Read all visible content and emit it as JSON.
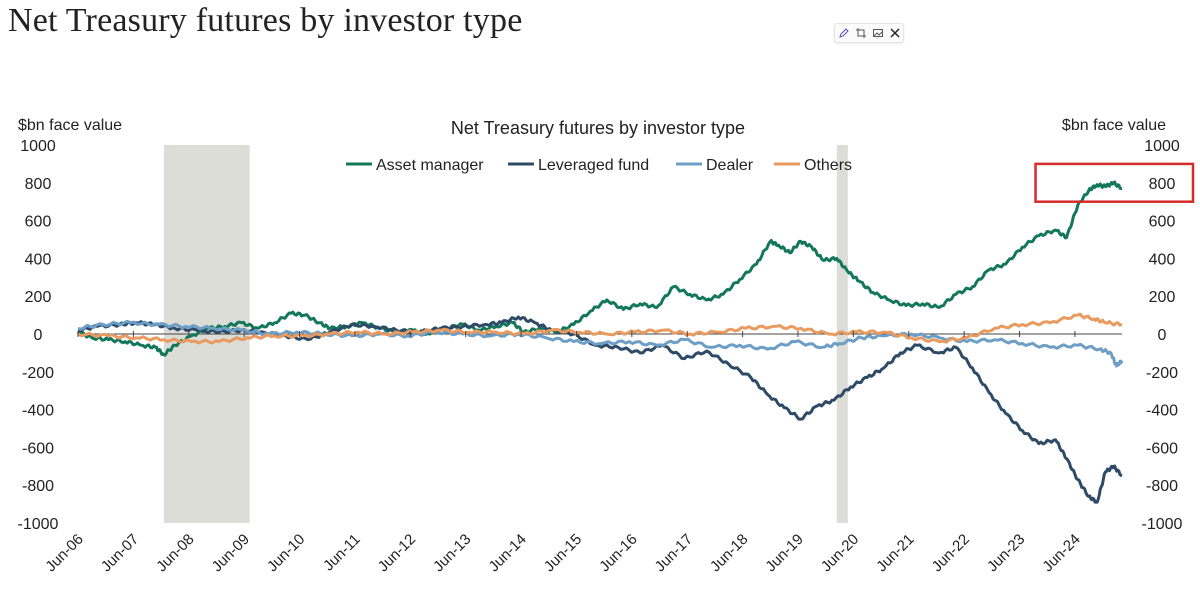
{
  "page": {
    "title": "Net Treasury futures by investor type"
  },
  "toolbar": {
    "icons": [
      "edit-icon",
      "crop-icon",
      "image-icon",
      "x-logo-icon"
    ]
  },
  "chart_data": {
    "type": "line",
    "title": "Net Treasury futures by investor type",
    "ylabel_left": "$bn face value",
    "ylabel_right": "$bn face value",
    "ylim": [
      -1000,
      1000
    ],
    "yticks": [
      1000,
      800,
      600,
      400,
      200,
      0,
      -200,
      -400,
      -600,
      -800,
      -1000
    ],
    "xlim": [
      2006.45,
      2025.3
    ],
    "xticks": [
      {
        "label": "Jun-06",
        "x": 2006.45
      },
      {
        "label": "Jun-07",
        "x": 2007.45
      },
      {
        "label": "Jun-08",
        "x": 2008.45
      },
      {
        "label": "Jun-09",
        "x": 2009.45
      },
      {
        "label": "Jun-10",
        "x": 2010.45
      },
      {
        "label": "Jun-11",
        "x": 2011.45
      },
      {
        "label": "Jun-12",
        "x": 2012.45
      },
      {
        "label": "Jun-13",
        "x": 2013.45
      },
      {
        "label": "Jun-14",
        "x": 2014.45
      },
      {
        "label": "Jun-15",
        "x": 2015.45
      },
      {
        "label": "Jun-16",
        "x": 2016.45
      },
      {
        "label": "Jun-17",
        "x": 2017.45
      },
      {
        "label": "Jun-18",
        "x": 2018.45
      },
      {
        "label": "Jun-19",
        "x": 2019.45
      },
      {
        "label": "Jun-20",
        "x": 2020.45
      },
      {
        "label": "Jun-21",
        "x": 2021.45
      },
      {
        "label": "Jun-22",
        "x": 2022.45
      },
      {
        "label": "Jun-23",
        "x": 2023.45
      },
      {
        "label": "Jun-24",
        "x": 2024.45
      }
    ],
    "legend_position": "top-center",
    "recession_shading": [
      {
        "start": 2008.0,
        "end": 2009.55
      },
      {
        "start": 2020.15,
        "end": 2020.35
      }
    ],
    "shading_color": "#dcddd6",
    "highlight_box": {
      "label": "800",
      "y_range": [
        700,
        900
      ],
      "x_range": [
        2024.1,
        2025.3
      ],
      "color": "#d62b2b"
    },
    "series": [
      {
        "name": "Asset manager",
        "color": "#13785a",
        "points": [
          [
            2006.45,
            10
          ],
          [
            2006.7,
            -20
          ],
          [
            2007.0,
            -30
          ],
          [
            2007.3,
            -40
          ],
          [
            2007.6,
            -60
          ],
          [
            2007.85,
            -70
          ],
          [
            2008.0,
            -110
          ],
          [
            2008.2,
            -60
          ],
          [
            2008.5,
            -10
          ],
          [
            2008.8,
            30
          ],
          [
            2009.1,
            40
          ],
          [
            2009.4,
            60
          ],
          [
            2009.7,
            30
          ],
          [
            2010.0,
            60
          ],
          [
            2010.3,
            110
          ],
          [
            2010.55,
            100
          ],
          [
            2010.8,
            60
          ],
          [
            2011.0,
            30
          ],
          [
            2011.3,
            40
          ],
          [
            2011.6,
            60
          ],
          [
            2011.9,
            30
          ],
          [
            2012.2,
            10
          ],
          [
            2012.5,
            20
          ],
          [
            2012.8,
            0
          ],
          [
            2013.1,
            30
          ],
          [
            2013.4,
            50
          ],
          [
            2013.7,
            20
          ],
          [
            2014.0,
            40
          ],
          [
            2014.3,
            60
          ],
          [
            2014.5,
            10
          ],
          [
            2014.8,
            30
          ],
          [
            2015.1,
            10
          ],
          [
            2015.4,
            50
          ],
          [
            2015.7,
            120
          ],
          [
            2016.0,
            180
          ],
          [
            2016.3,
            130
          ],
          [
            2016.6,
            160
          ],
          [
            2016.9,
            140
          ],
          [
            2017.2,
            250
          ],
          [
            2017.5,
            210
          ],
          [
            2017.8,
            180
          ],
          [
            2018.1,
            210
          ],
          [
            2018.4,
            290
          ],
          [
            2018.7,
            370
          ],
          [
            2018.95,
            490
          ],
          [
            2019.1,
            470
          ],
          [
            2019.3,
            430
          ],
          [
            2019.5,
            490
          ],
          [
            2019.7,
            460
          ],
          [
            2019.9,
            390
          ],
          [
            2020.15,
            400
          ],
          [
            2020.35,
            330
          ],
          [
            2020.55,
            280
          ],
          [
            2020.8,
            220
          ],
          [
            2021.1,
            180
          ],
          [
            2021.4,
            150
          ],
          [
            2021.7,
            160
          ],
          [
            2022.0,
            140
          ],
          [
            2022.3,
            210
          ],
          [
            2022.6,
            250
          ],
          [
            2022.9,
            340
          ],
          [
            2023.2,
            370
          ],
          [
            2023.5,
            460
          ],
          [
            2023.8,
            520
          ],
          [
            2024.1,
            550
          ],
          [
            2024.3,
            510
          ],
          [
            2024.5,
            680
          ],
          [
            2024.7,
            760
          ],
          [
            2024.85,
            790
          ],
          [
            2025.0,
            780
          ],
          [
            2025.15,
            800
          ],
          [
            2025.3,
            770
          ]
        ]
      },
      {
        "name": "Leveraged fund",
        "color": "#2d4a67",
        "points": [
          [
            2006.45,
            20
          ],
          [
            2006.8,
            40
          ],
          [
            2007.2,
            50
          ],
          [
            2007.5,
            60
          ],
          [
            2007.85,
            50
          ],
          [
            2008.2,
            30
          ],
          [
            2008.6,
            20
          ],
          [
            2009.0,
            10
          ],
          [
            2009.4,
            20
          ],
          [
            2009.8,
            10
          ],
          [
            2010.2,
            -10
          ],
          [
            2010.6,
            -30
          ],
          [
            2011.0,
            10
          ],
          [
            2011.4,
            50
          ],
          [
            2011.8,
            40
          ],
          [
            2012.2,
            20
          ],
          [
            2012.6,
            10
          ],
          [
            2013.0,
            30
          ],
          [
            2013.4,
            40
          ],
          [
            2013.8,
            50
          ],
          [
            2014.1,
            60
          ],
          [
            2014.4,
            90
          ],
          [
            2014.7,
            60
          ],
          [
            2015.0,
            20
          ],
          [
            2015.4,
            0
          ],
          [
            2015.8,
            -60
          ],
          [
            2016.2,
            -70
          ],
          [
            2016.6,
            -100
          ],
          [
            2017.0,
            -60
          ],
          [
            2017.4,
            -130
          ],
          [
            2017.8,
            -90
          ],
          [
            2018.2,
            -160
          ],
          [
            2018.6,
            -230
          ],
          [
            2018.9,
            -320
          ],
          [
            2019.2,
            -390
          ],
          [
            2019.5,
            -450
          ],
          [
            2019.8,
            -380
          ],
          [
            2020.1,
            -350
          ],
          [
            2020.4,
            -280
          ],
          [
            2020.7,
            -230
          ],
          [
            2021.0,
            -180
          ],
          [
            2021.3,
            -100
          ],
          [
            2021.6,
            -60
          ],
          [
            2022.0,
            -100
          ],
          [
            2022.3,
            -70
          ],
          [
            2022.6,
            -180
          ],
          [
            2022.9,
            -310
          ],
          [
            2023.2,
            -420
          ],
          [
            2023.5,
            -510
          ],
          [
            2023.8,
            -580
          ],
          [
            2024.1,
            -560
          ],
          [
            2024.3,
            -660
          ],
          [
            2024.5,
            -770
          ],
          [
            2024.7,
            -860
          ],
          [
            2024.85,
            -890
          ],
          [
            2025.0,
            -730
          ],
          [
            2025.15,
            -700
          ],
          [
            2025.3,
            -750
          ]
        ]
      },
      {
        "name": "Dealer",
        "color": "#6c9ec6",
        "points": [
          [
            2006.45,
            30
          ],
          [
            2006.9,
            50
          ],
          [
            2007.4,
            60
          ],
          [
            2007.9,
            50
          ],
          [
            2008.4,
            40
          ],
          [
            2008.9,
            30
          ],
          [
            2009.4,
            20
          ],
          [
            2009.9,
            0
          ],
          [
            2010.4,
            10
          ],
          [
            2010.9,
            0
          ],
          [
            2011.4,
            -10
          ],
          [
            2011.9,
            0
          ],
          [
            2012.4,
            -10
          ],
          [
            2012.9,
            10
          ],
          [
            2013.4,
            0
          ],
          [
            2013.9,
            -10
          ],
          [
            2014.4,
            0
          ],
          [
            2014.9,
            -20
          ],
          [
            2015.4,
            -40
          ],
          [
            2015.9,
            -50
          ],
          [
            2016.4,
            -40
          ],
          [
            2016.9,
            -60
          ],
          [
            2017.4,
            -30
          ],
          [
            2017.9,
            -70
          ],
          [
            2018.4,
            -60
          ],
          [
            2018.9,
            -80
          ],
          [
            2019.4,
            -40
          ],
          [
            2019.9,
            -70
          ],
          [
            2020.2,
            -50
          ],
          [
            2020.6,
            -20
          ],
          [
            2021.0,
            -10
          ],
          [
            2021.5,
            0
          ],
          [
            2022.0,
            -20
          ],
          [
            2022.5,
            -40
          ],
          [
            2023.0,
            -30
          ],
          [
            2023.5,
            -50
          ],
          [
            2024.0,
            -70
          ],
          [
            2024.5,
            -60
          ],
          [
            2024.9,
            -80
          ],
          [
            2025.1,
            -100
          ],
          [
            2025.2,
            -170
          ],
          [
            2025.3,
            -140
          ]
        ]
      },
      {
        "name": "Others",
        "color": "#e89a5f",
        "points": [
          [
            2006.45,
            0
          ],
          [
            2007.0,
            -10
          ],
          [
            2007.5,
            -20
          ],
          [
            2008.0,
            -30
          ],
          [
            2008.5,
            -40
          ],
          [
            2009.0,
            -40
          ],
          [
            2009.5,
            -20
          ],
          [
            2010.0,
            -10
          ],
          [
            2010.5,
            -10
          ],
          [
            2011.0,
            0
          ],
          [
            2011.5,
            10
          ],
          [
            2012.0,
            0
          ],
          [
            2012.5,
            10
          ],
          [
            2013.0,
            20
          ],
          [
            2013.5,
            10
          ],
          [
            2014.0,
            10
          ],
          [
            2014.5,
            0
          ],
          [
            2015.0,
            20
          ],
          [
            2015.5,
            10
          ],
          [
            2016.0,
            0
          ],
          [
            2016.5,
            10
          ],
          [
            2017.0,
            20
          ],
          [
            2017.5,
            0
          ],
          [
            2018.0,
            10
          ],
          [
            2018.5,
            30
          ],
          [
            2019.0,
            40
          ],
          [
            2019.5,
            30
          ],
          [
            2020.0,
            0
          ],
          [
            2020.5,
            10
          ],
          [
            2021.0,
            10
          ],
          [
            2021.5,
            -20
          ],
          [
            2022.0,
            -40
          ],
          [
            2022.5,
            -20
          ],
          [
            2023.0,
            30
          ],
          [
            2023.5,
            50
          ],
          [
            2024.0,
            60
          ],
          [
            2024.5,
            100
          ],
          [
            2024.8,
            80
          ],
          [
            2025.0,
            60
          ],
          [
            2025.3,
            50
          ]
        ]
      }
    ]
  }
}
